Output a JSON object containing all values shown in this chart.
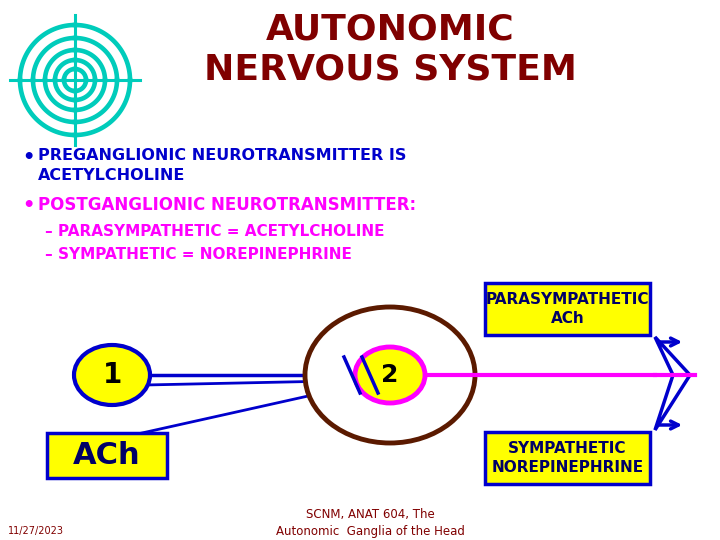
{
  "bg_color": "#FFFFFF",
  "title_line1": "AUTONOMIC",
  "title_line2": "NERVOUS SYSTEM",
  "title_color": "#800000",
  "title_fontsize": 26,
  "bullet1_text": "PREGANGLIONIC NEUROTRANSMITTER IS\nACETYLCHOLINE",
  "bullet1_color": "#0000CC",
  "bullet1_fontsize": 11.5,
  "bullet2_text": "POSTGANGLIONIC NEUROTRANSMITTER:",
  "bullet2_color": "#FF00FF",
  "bullet2_fontsize": 12,
  "dash1_text": "PARASYMPATHETIC = ACETYLCHOLINE",
  "dash2_text": "SYMPATHETIC = NOREPINEPHRINE",
  "dash_color": "#FF00FF",
  "dash_fontsize": 11,
  "node1_label": "1",
  "node2_label": "2",
  "node_label_color": "#000000",
  "node_fill": "#FFFF00",
  "node1_edge_color": "#0000CC",
  "node2_edge_color": "#FF00FF",
  "ganglion_edge_color": "#5B1A00",
  "box_ach_text": "ACh",
  "box_parasym_text": "PARASYMPATHETIC\nACh",
  "box_sympathetic_text": "SYMPATHETIC\nNOREPINEPHRINE",
  "box_fill": "#FFFF00",
  "box_edge_color": "#0000CC",
  "arrow_blue_color": "#0000CC",
  "arrow_pink_color": "#FF00FF",
  "footer_text": "SCNM, ANAT 604, The\nAutonomic  Ganglia of the Head",
  "footer_color": "#800000",
  "logo_color": "#00CCBB",
  "date_text": "11/27/2023",
  "date_color": "#800000"
}
